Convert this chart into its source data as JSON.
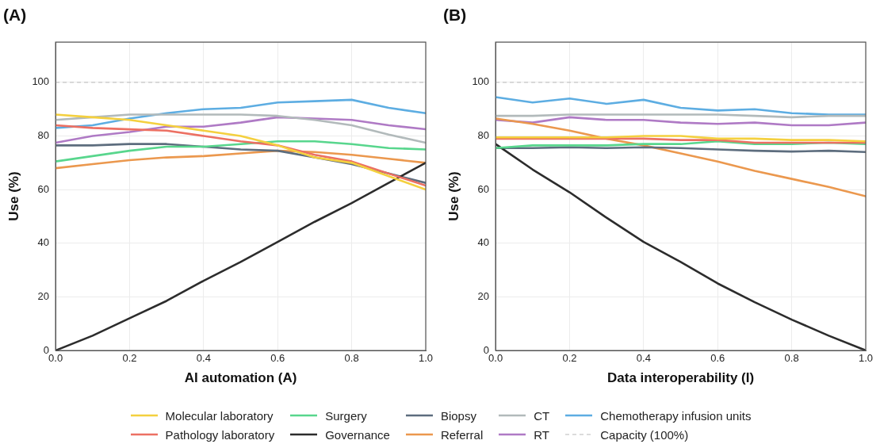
{
  "chart_data": [
    {
      "type": "line",
      "title": "(A)",
      "xlabel": "AI automation (A)",
      "ylabel": "Use (%)",
      "x": [
        0,
        0.1,
        0.2,
        0.3,
        0.4,
        0.5,
        0.6,
        0.7,
        0.8,
        0.9,
        1.0
      ],
      "xlim": [
        0,
        1
      ],
      "xticks": [
        {
          "value": 0,
          "label": "0.0"
        },
        {
          "value": 0.2,
          "label": "0.2"
        },
        {
          "value": 0.4,
          "label": "0.4"
        },
        {
          "value": 0.6,
          "label": "0.6"
        },
        {
          "value": 0.8,
          "label": "0.8"
        },
        {
          "value": 1,
          "label": "1.0"
        }
      ],
      "ylim": [
        0,
        115
      ],
      "yticks": [
        0,
        20,
        40,
        60,
        80,
        100
      ],
      "grid": true,
      "legend": "bottom",
      "marker": "none",
      "line_style": "solid",
      "ref_lines": [
        {
          "axis": "y",
          "value": 100,
          "label": "Capacity (100%)",
          "color": "#b8b8b8",
          "line_style": "dashed"
        }
      ],
      "series": [
        {
          "name": "Molecular laboratory",
          "color": "#f4d03f",
          "values": [
            88,
            87,
            86,
            84,
            82,
            80,
            76.5,
            72,
            70,
            65,
            60
          ]
        },
        {
          "name": "Pathology laboratory",
          "color": "#ec7063",
          "values": [
            84,
            83,
            82.5,
            82,
            80,
            78,
            76.5,
            73,
            70.5,
            66,
            61.5
          ]
        },
        {
          "name": "Surgery",
          "color": "#58d68d",
          "values": [
            70.5,
            72.5,
            74.5,
            76,
            76,
            77,
            78,
            78,
            77,
            75.5,
            75
          ]
        },
        {
          "name": "Governance",
          "color": "#2c2c2c",
          "values": [
            0,
            5.5,
            12,
            18.5,
            26,
            33,
            40.5,
            48,
            55,
            62.5,
            70
          ]
        },
        {
          "name": "Biopsy",
          "color": "#5d6d7e",
          "values": [
            76.5,
            76.5,
            77,
            77,
            76,
            75,
            74.5,
            72,
            69.5,
            66,
            62.5
          ]
        },
        {
          "name": "Referral",
          "color": "#eb984e",
          "values": [
            68,
            69.5,
            71,
            72,
            72.5,
            73.5,
            74.5,
            74,
            73,
            71.5,
            70
          ]
        },
        {
          "name": "CT",
          "color": "#b2babb",
          "values": [
            86,
            87,
            88,
            88,
            88,
            88,
            87.5,
            86,
            84,
            80.5,
            77.5
          ]
        },
        {
          "name": "RT",
          "color": "#af7ac5",
          "values": [
            77.5,
            80,
            81.5,
            83.5,
            83.5,
            85,
            87,
            86.5,
            86,
            84,
            82.5
          ]
        },
        {
          "name": "Chemotherapy infusion units",
          "color": "#5dade2",
          "values": [
            83,
            84,
            86.5,
            88.5,
            90,
            90.5,
            92.5,
            93,
            93.5,
            90.5,
            88.5
          ]
        }
      ]
    },
    {
      "type": "line",
      "title": "(B)",
      "xlabel": "Data interoperability (I)",
      "ylabel": "Use (%)",
      "x": [
        0,
        0.1,
        0.2,
        0.3,
        0.4,
        0.5,
        0.6,
        0.7,
        0.8,
        0.9,
        1.0
      ],
      "xlim": [
        0,
        1
      ],
      "xticks": [
        {
          "value": 0,
          "label": "0.0"
        },
        {
          "value": 0.2,
          "label": "0.2"
        },
        {
          "value": 0.4,
          "label": "0.4"
        },
        {
          "value": 0.6,
          "label": "0.6"
        },
        {
          "value": 0.8,
          "label": "0.8"
        },
        {
          "value": 1,
          "label": "1.0"
        }
      ],
      "ylim": [
        0,
        115
      ],
      "yticks": [
        0,
        20,
        40,
        60,
        80,
        100
      ],
      "grid": true,
      "marker": "none",
      "line_style": "solid",
      "ref_lines": [
        {
          "axis": "y",
          "value": 100,
          "color": "#b8b8b8",
          "line_style": "dashed"
        }
      ],
      "series": [
        {
          "color": "#f4d03f",
          "values": [
            79.5,
            79.5,
            79.5,
            79.5,
            80,
            80,
            79,
            79,
            78.5,
            78.5,
            78
          ]
        },
        {
          "color": "#ec7063",
          "values": [
            79,
            79,
            79,
            79,
            79,
            78.5,
            78.5,
            77.5,
            77.5,
            77.5,
            77.5
          ]
        },
        {
          "color": "#58d68d",
          "values": [
            75.5,
            76.5,
            76.5,
            76.5,
            77,
            77,
            78,
            77,
            77,
            77.5,
            77
          ]
        },
        {
          "color": "#2c2c2c",
          "values": [
            77,
            67.5,
            59,
            49.5,
            40.5,
            33,
            25,
            18,
            11.5,
            5.5,
            0
          ]
        },
        {
          "color": "#5d6d7e",
          "values": [
            75.5,
            75.5,
            75.8,
            75.5,
            75.8,
            75.5,
            75,
            74.5,
            74.2,
            74.5,
            74
          ]
        },
        {
          "color": "#eb984e",
          "values": [
            86.5,
            84.5,
            82,
            79,
            76.5,
            73.5,
            70.5,
            67,
            64,
            61,
            57.5
          ]
        },
        {
          "color": "#b2babb",
          "values": [
            87.5,
            87.5,
            88,
            88,
            88,
            88,
            88,
            87.5,
            87,
            87.5,
            87.5
          ]
        },
        {
          "color": "#af7ac5",
          "values": [
            86,
            85,
            87,
            86,
            86,
            85,
            84.5,
            85,
            84,
            84,
            85
          ]
        },
        {
          "color": "#5dade2",
          "values": [
            94.5,
            92.5,
            94,
            92,
            93.5,
            90.5,
            89.5,
            90,
            88.5,
            88,
            88
          ]
        }
      ]
    }
  ]
}
